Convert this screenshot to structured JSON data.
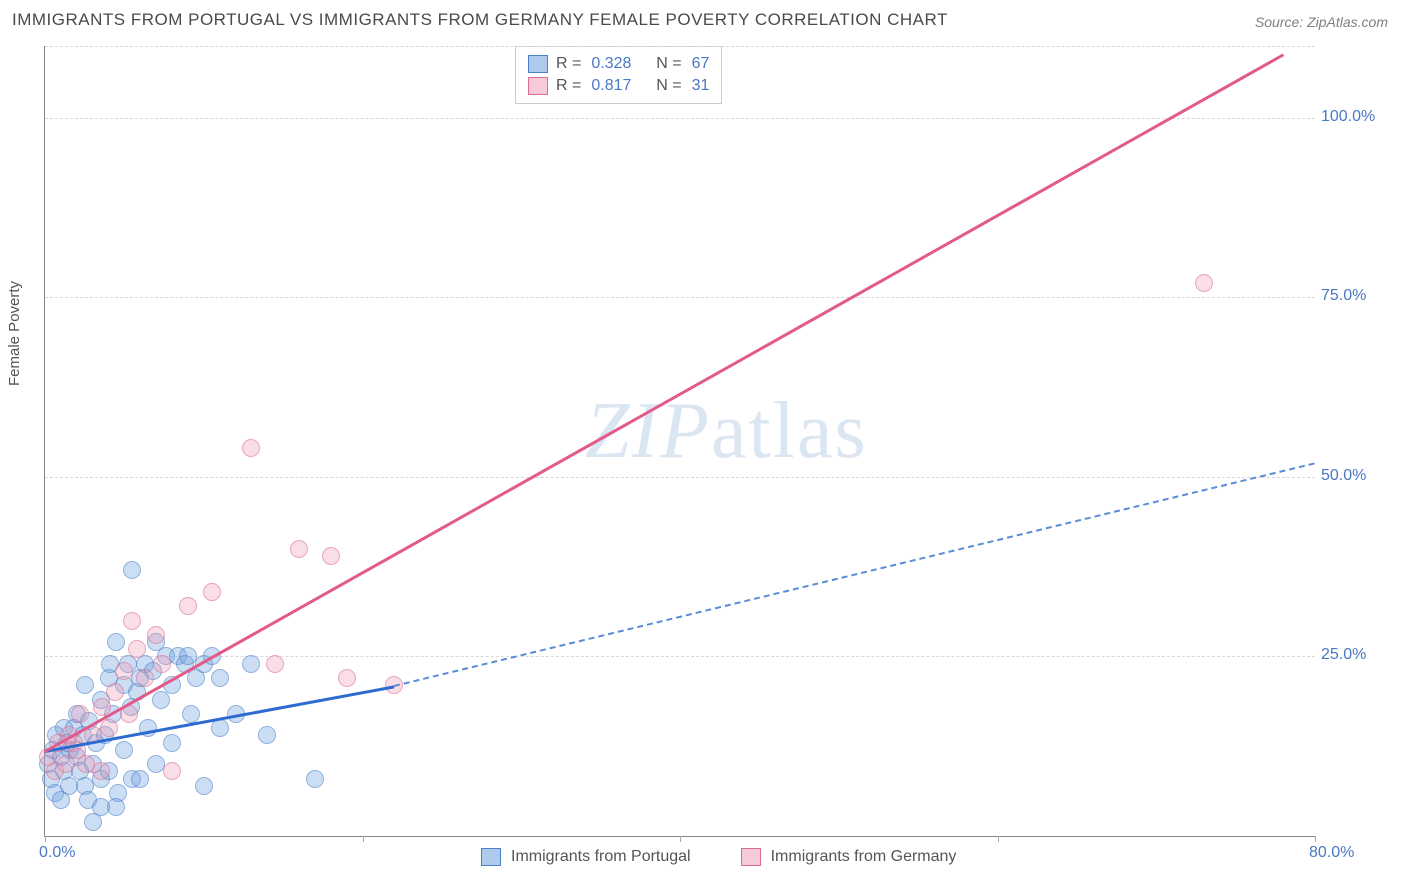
{
  "title": "IMMIGRANTS FROM PORTUGAL VS IMMIGRANTS FROM GERMANY FEMALE POVERTY CORRELATION CHART",
  "source": "Source: ZipAtlas.com",
  "ylabel": "Female Poverty",
  "watermark": "ZIPatlas",
  "chart": {
    "type": "scatter",
    "xlim": [
      0,
      80
    ],
    "ylim": [
      0,
      110
    ],
    "x_ticks": [
      0,
      20,
      40,
      60,
      80
    ],
    "x_tick_labels": [
      "0.0%",
      "",
      "",
      "",
      "80.0%"
    ],
    "y_ticks": [
      25,
      50,
      75,
      100
    ],
    "y_tick_labels": [
      "25.0%",
      "50.0%",
      "75.0%",
      "100.0%"
    ],
    "background_color": "#ffffff",
    "grid_color": "#d8d8d8",
    "axis_color": "#888888",
    "tick_label_color": "#4a78c4",
    "series": [
      {
        "name": "Immigrants from Portugal",
        "color_fill": "rgba(108,158,222,0.55)",
        "color_stroke": "#4a82c9",
        "marker_radius": 8,
        "R": 0.328,
        "N": 67,
        "trend": {
          "x1": 0,
          "y1": 12,
          "x2": 22,
          "y2": 21,
          "solid_end_x": 22,
          "dashed_to_x": 80,
          "dashed_to_y": 52,
          "color": "#2e6bd0",
          "dash_color": "#5a8dd6",
          "width": 3
        },
        "points": [
          [
            0.2,
            10
          ],
          [
            0.4,
            8
          ],
          [
            0.5,
            12
          ],
          [
            0.7,
            14
          ],
          [
            0.6,
            6
          ],
          [
            1,
            11
          ],
          [
            1,
            5
          ],
          [
            1.2,
            15
          ],
          [
            1.2,
            9
          ],
          [
            1.4,
            13
          ],
          [
            1.5,
            7
          ],
          [
            1.6,
            12
          ],
          [
            1.8,
            15
          ],
          [
            2,
            11
          ],
          [
            2,
            17
          ],
          [
            2.2,
            9
          ],
          [
            2.4,
            14
          ],
          [
            2.5,
            21
          ],
          [
            2.5,
            7
          ],
          [
            2.7,
            5
          ],
          [
            2.8,
            16
          ],
          [
            3,
            10
          ],
          [
            3,
            2
          ],
          [
            3.2,
            13
          ],
          [
            3.5,
            19
          ],
          [
            3.5,
            8
          ],
          [
            3.8,
            14
          ],
          [
            4,
            22
          ],
          [
            4,
            9
          ],
          [
            4.1,
            24
          ],
          [
            4.3,
            17
          ],
          [
            4.5,
            27
          ],
          [
            4.6,
            6
          ],
          [
            5,
            21
          ],
          [
            5,
            12
          ],
          [
            5.2,
            24
          ],
          [
            5.4,
            18
          ],
          [
            5.5,
            8
          ],
          [
            5.5,
            37
          ],
          [
            5.8,
            20
          ],
          [
            6,
            22
          ],
          [
            6,
            8
          ],
          [
            6.3,
            24
          ],
          [
            6.5,
            15
          ],
          [
            6.8,
            23
          ],
          [
            7,
            27
          ],
          [
            7,
            10
          ],
          [
            7.3,
            19
          ],
          [
            7.6,
            25
          ],
          [
            8,
            21
          ],
          [
            8,
            13
          ],
          [
            8.4,
            25
          ],
          [
            8.8,
            24
          ],
          [
            9,
            25
          ],
          [
            9.2,
            17
          ],
          [
            9.5,
            22
          ],
          [
            10,
            24
          ],
          [
            10,
            7
          ],
          [
            10.5,
            25
          ],
          [
            11,
            22
          ],
          [
            11,
            15
          ],
          [
            12,
            17
          ],
          [
            13,
            24
          ],
          [
            14,
            14
          ],
          [
            17,
            8
          ],
          [
            3.5,
            4
          ],
          [
            4.5,
            4
          ]
        ]
      },
      {
        "name": "Immigrants from Germany",
        "color_fill": "rgba(239,150,176,0.5)",
        "color_stroke": "#da6f95",
        "marker_radius": 8,
        "R": 0.817,
        "N": 31,
        "trend": {
          "x1": 0,
          "y1": 12,
          "x2": 78,
          "y2": 109,
          "color": "#e35a8a",
          "width": 3
        },
        "points": [
          [
            0.2,
            11
          ],
          [
            0.6,
            9
          ],
          [
            0.8,
            13
          ],
          [
            1.3,
            10
          ],
          [
            1.5,
            14
          ],
          [
            1.8,
            13
          ],
          [
            2,
            12
          ],
          [
            2.2,
            17
          ],
          [
            2.6,
            10
          ],
          [
            3,
            14
          ],
          [
            3.5,
            9
          ],
          [
            4,
            15
          ],
          [
            4.4,
            20
          ],
          [
            5,
            23
          ],
          [
            5.3,
            17
          ],
          [
            5.8,
            26
          ],
          [
            6.3,
            22
          ],
          [
            7,
            28
          ],
          [
            7.4,
            24
          ],
          [
            8,
            9
          ],
          [
            9,
            32
          ],
          [
            10.5,
            34
          ],
          [
            13,
            54
          ],
          [
            14.5,
            24
          ],
          [
            16,
            40
          ],
          [
            18,
            39
          ],
          [
            19,
            22
          ],
          [
            22,
            21
          ],
          [
            73,
            77
          ],
          [
            3.6,
            18
          ],
          [
            5.5,
            30
          ]
        ]
      }
    ],
    "legend_top": {
      "r_label": "R =",
      "n_label": "N ="
    },
    "legend_bottom": [
      {
        "swatch": "blue",
        "label": "Immigrants from Portugal"
      },
      {
        "swatch": "pink",
        "label": "Immigrants from Germany"
      }
    ]
  }
}
